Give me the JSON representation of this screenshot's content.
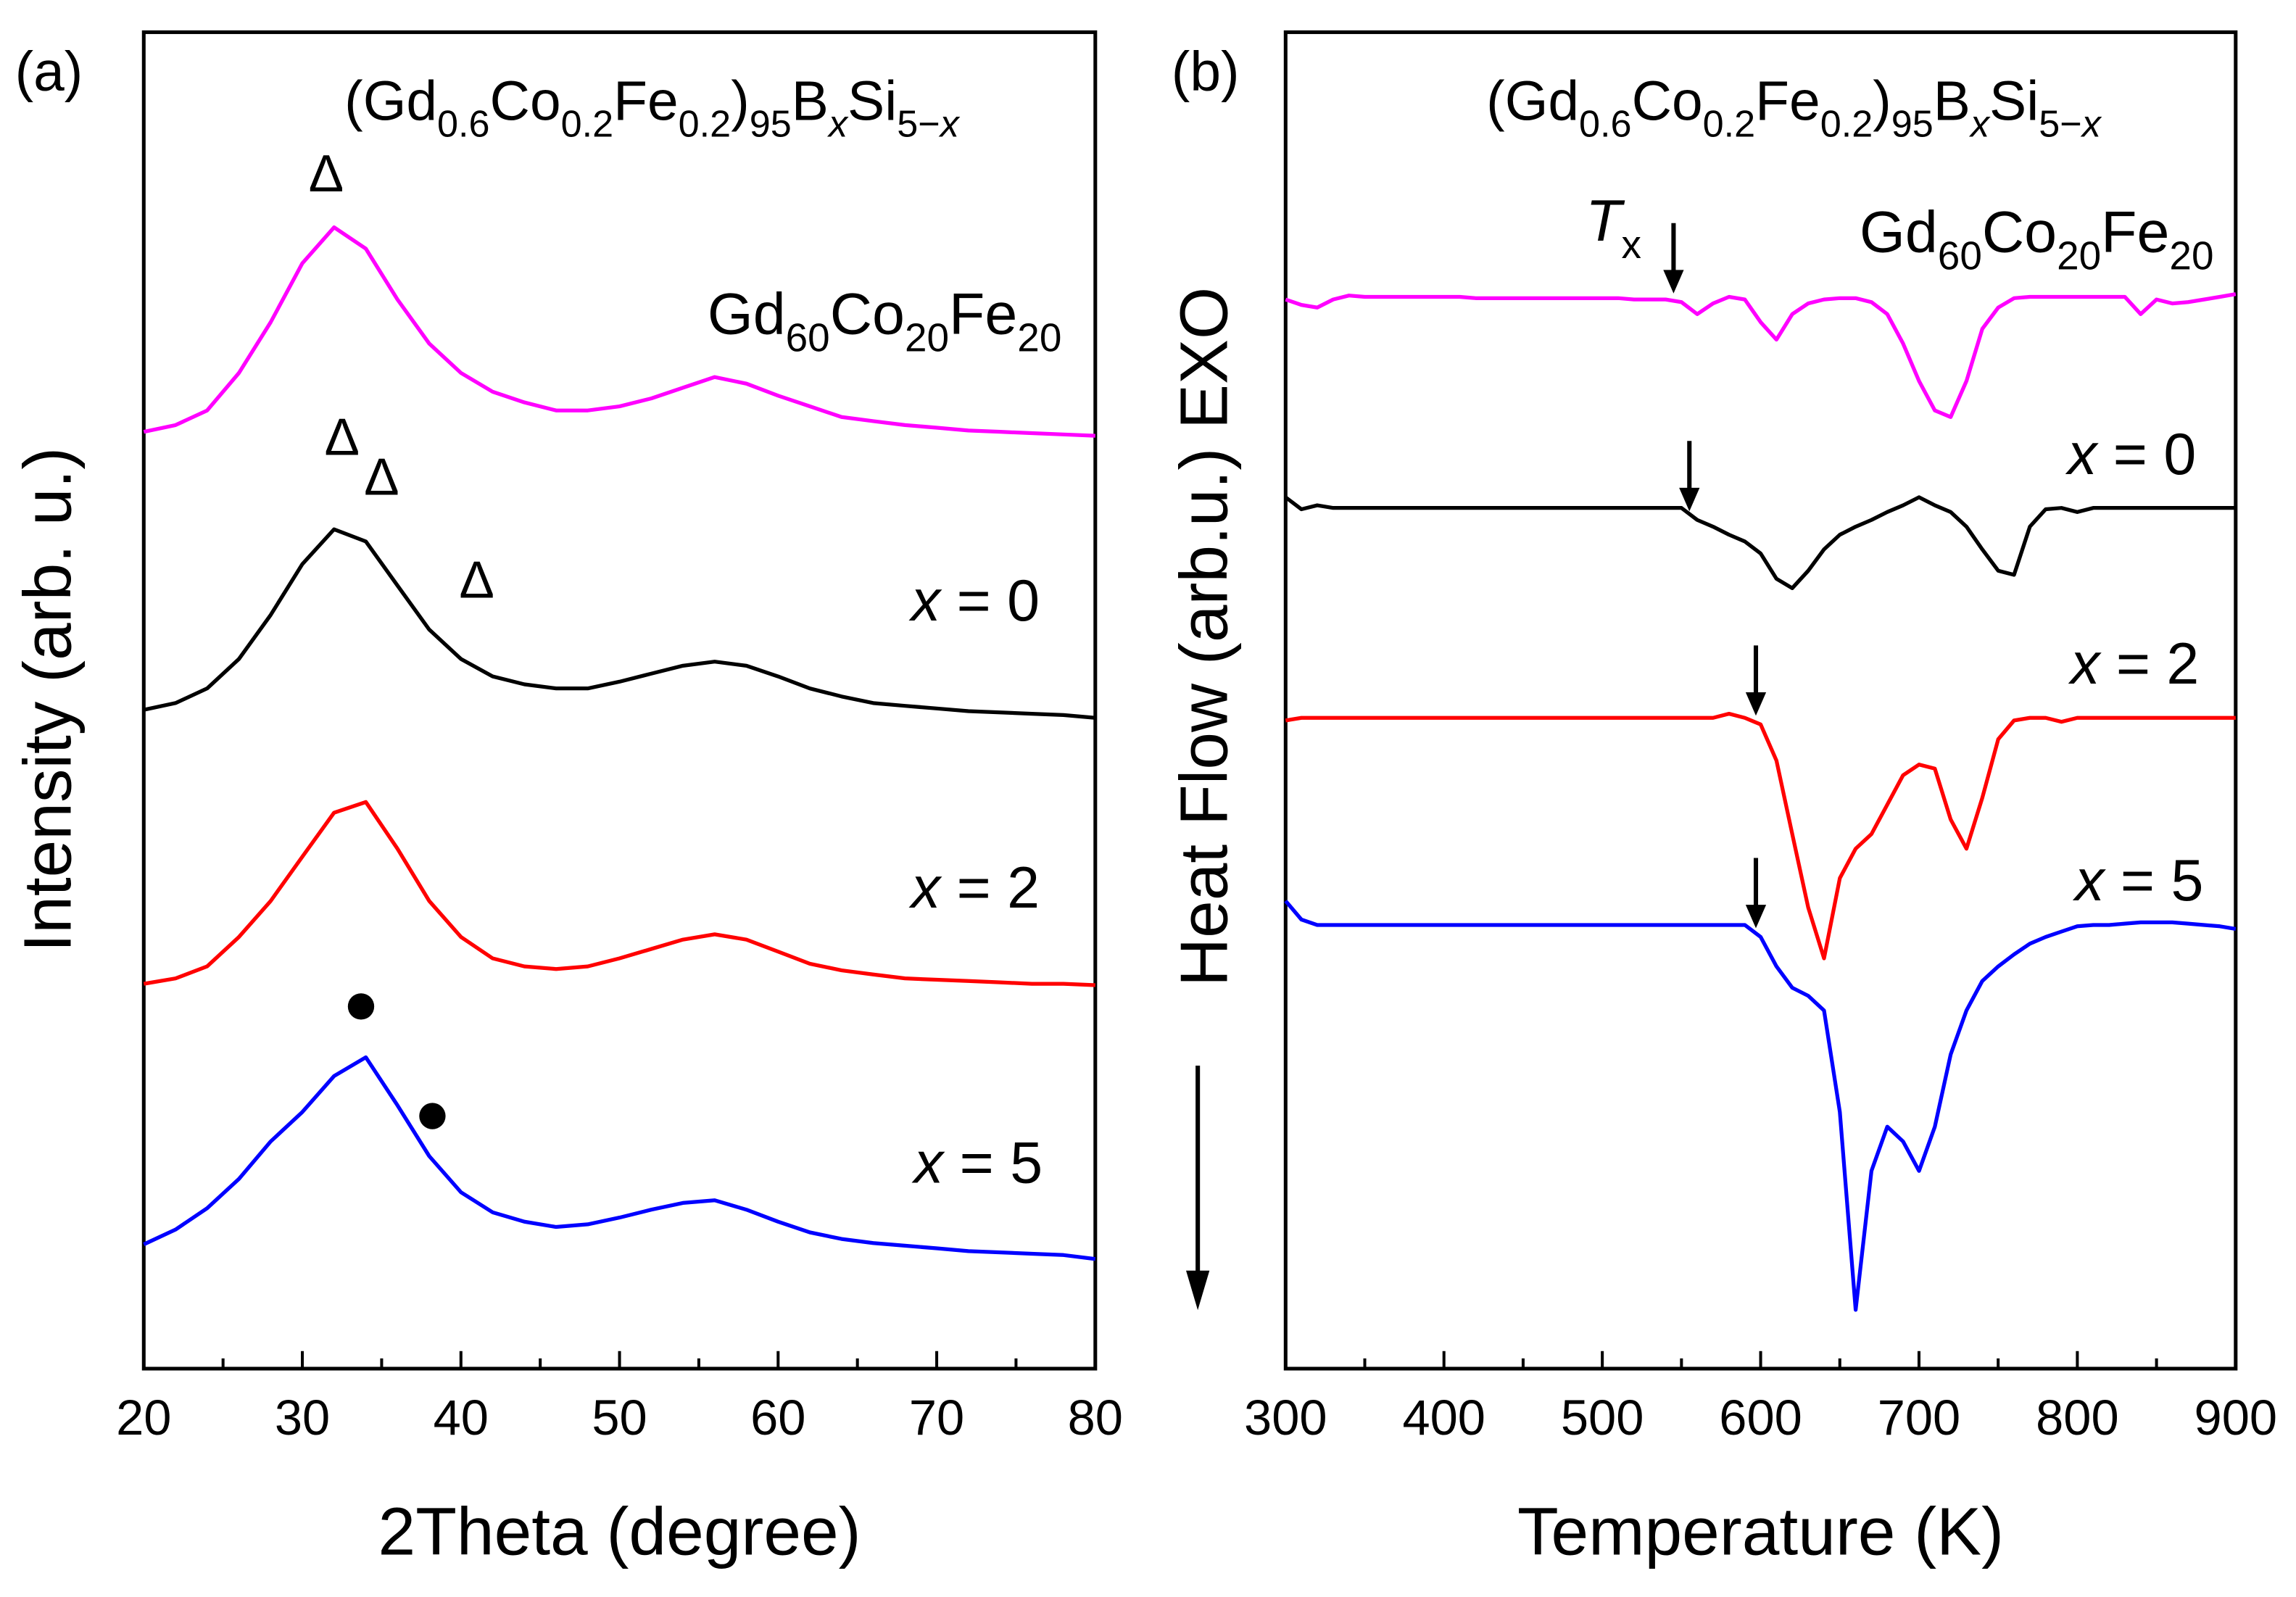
{
  "chart_data": [
    {
      "type": "line",
      "panel_label": "(a)",
      "title_parts": [
        {
          "t": "(Gd"
        },
        {
          "t": "0.6",
          "sub": true
        },
        {
          "t": "Co"
        },
        {
          "t": "0.2",
          "sub": true
        },
        {
          "t": "Fe"
        },
        {
          "t": "0.2",
          "sub": true
        },
        {
          "t": ")"
        },
        {
          "t": "95",
          "sub": true
        },
        {
          "t": "B"
        },
        {
          "t": "x",
          "sub": true,
          "italic": true
        },
        {
          "t": "Si"
        },
        {
          "t": "5−",
          "sub": true
        },
        {
          "t": "x",
          "sub": true,
          "italic": true
        }
      ],
      "xlabel": "2Theta (degree)",
      "ylabel": "Intensity (arb. u.)",
      "x": [
        20,
        22,
        24,
        26,
        28,
        30,
        32,
        34,
        36,
        38,
        40,
        42,
        44,
        46,
        48,
        50,
        52,
        54,
        56,
        58,
        60,
        62,
        64,
        66,
        68,
        70,
        72,
        74,
        76,
        78,
        80
      ],
      "xlim": [
        20,
        80
      ],
      "xticks": [
        20,
        30,
        40,
        50,
        60,
        70,
        80
      ],
      "ylim": [
        0,
        100
      ],
      "series": [
        {
          "name": [
            {
              "t": "Gd"
            },
            {
              "t": "60",
              "sub": true
            },
            {
              "t": "Co"
            },
            {
              "t": "20",
              "sub": true
            },
            {
              "t": "Fe"
            },
            {
              "t": "20",
              "sub": true
            }
          ],
          "color": "#ff00ff",
          "values": [
            70.1,
            70.6,
            71.7,
            74.5,
            78.3,
            82.7,
            85.4,
            83.8,
            80.0,
            76.7,
            74.5,
            73.1,
            72.3,
            71.7,
            71.7,
            72.0,
            72.6,
            73.4,
            74.2,
            73.7,
            72.8,
            72.0,
            71.2,
            70.9,
            70.6,
            70.4,
            70.2,
            70.1,
            70.0,
            69.9,
            69.8
          ]
        },
        {
          "name": [
            {
              "t": "x",
              "italic": true
            },
            {
              "t": " = 0"
            }
          ],
          "color": "#000000",
          "values": [
            49.3,
            49.8,
            50.9,
            53.1,
            56.4,
            60.2,
            62.8,
            61.9,
            58.6,
            55.3,
            53.1,
            51.8,
            51.2,
            50.9,
            50.9,
            51.4,
            52.0,
            52.6,
            52.9,
            52.6,
            51.8,
            50.9,
            50.3,
            49.8,
            49.6,
            49.4,
            49.2,
            49.1,
            49.0,
            48.9,
            48.7
          ]
        },
        {
          "name": [
            {
              "t": "x",
              "italic": true
            },
            {
              "t": " = 2"
            }
          ],
          "color": "#ff0000",
          "values": [
            28.8,
            29.2,
            30.1,
            32.3,
            35.0,
            38.3,
            41.6,
            42.4,
            38.9,
            35.0,
            32.3,
            30.7,
            30.1,
            29.9,
            30.1,
            30.7,
            31.4,
            32.1,
            32.5,
            32.1,
            31.2,
            30.3,
            29.8,
            29.5,
            29.2,
            29.1,
            29.0,
            28.9,
            28.8,
            28.8,
            28.7
          ]
        },
        {
          "name": [
            {
              "t": "x",
              "italic": true
            },
            {
              "t": " = 5"
            }
          ],
          "color": "#0000ff",
          "values": [
            9.3,
            10.4,
            12.0,
            14.2,
            17.0,
            19.2,
            21.9,
            23.3,
            19.7,
            15.9,
            13.2,
            11.7,
            11.0,
            10.6,
            10.8,
            11.3,
            11.9,
            12.4,
            12.6,
            11.9,
            11.0,
            10.2,
            9.7,
            9.4,
            9.2,
            9.0,
            8.8,
            8.7,
            8.6,
            8.5,
            8.2
          ]
        }
      ],
      "markers": [
        {
          "label": "Δ",
          "x": 31.5,
          "y": 89.5
        },
        {
          "label": "Δ",
          "x": 32.5,
          "y": 69.8
        },
        {
          "label": "Δ",
          "x": 35,
          "y": 66.8
        },
        {
          "label": "Δ",
          "x": 41,
          "y": 59.1
        }
      ],
      "dots": [
        {
          "x": 33.7,
          "y": 27.1
        },
        {
          "x": 38.2,
          "y": 18.9
        }
      ]
    },
    {
      "type": "line",
      "panel_label": "(b)",
      "title_parts": [
        {
          "t": "(Gd"
        },
        {
          "t": "0.6",
          "sub": true
        },
        {
          "t": "Co"
        },
        {
          "t": "0.2",
          "sub": true
        },
        {
          "t": "Fe"
        },
        {
          "t": "0.2",
          "sub": true
        },
        {
          "t": ")"
        },
        {
          "t": "95",
          "sub": true
        },
        {
          "t": "B"
        },
        {
          "t": "x",
          "sub": true,
          "italic": true
        },
        {
          "t": "Si"
        },
        {
          "t": "5−",
          "sub": true
        },
        {
          "t": "x",
          "sub": true,
          "italic": true
        }
      ],
      "xlabel": "Temperature (K)",
      "ylabel": "Heat Flow (arb.u.) EXO",
      "x": [
        300,
        310,
        320,
        330,
        340,
        350,
        360,
        370,
        380,
        390,
        400,
        410,
        420,
        430,
        440,
        450,
        460,
        470,
        480,
        490,
        500,
        510,
        520,
        530,
        540,
        550,
        560,
        570,
        580,
        590,
        600,
        610,
        620,
        630,
        640,
        650,
        660,
        670,
        680,
        690,
        700,
        710,
        720,
        730,
        740,
        750,
        760,
        770,
        780,
        790,
        800,
        810,
        820,
        830,
        840,
        850,
        860,
        870,
        880,
        890,
        900
      ],
      "xlim": [
        300,
        900
      ],
      "xticks": [
        300,
        400,
        500,
        600,
        700,
        800,
        900
      ],
      "ylim": [
        0,
        100
      ],
      "tx_label": [
        {
          "t": "T",
          "italic": true
        },
        {
          "t": "x",
          "sub": true
        }
      ],
      "series": [
        {
          "name": [
            {
              "t": "Gd"
            },
            {
              "t": "60",
              "sub": true
            },
            {
              "t": "Co"
            },
            {
              "t": "20",
              "sub": true
            },
            {
              "t": "Fe"
            },
            {
              "t": "20",
              "sub": true
            }
          ],
          "color": "#ff00ff",
          "tx": 545,
          "values": [
            80.0,
            79.6,
            79.4,
            80.0,
            80.3,
            80.2,
            80.2,
            80.2,
            80.2,
            80.2,
            80.2,
            80.2,
            80.1,
            80.1,
            80.1,
            80.1,
            80.1,
            80.1,
            80.1,
            80.1,
            80.1,
            80.1,
            80.0,
            80.0,
            80.0,
            79.8,
            78.9,
            79.7,
            80.2,
            80.0,
            78.3,
            77.0,
            78.9,
            79.7,
            80.0,
            80.1,
            80.1,
            79.8,
            78.9,
            76.7,
            73.9,
            71.7,
            71.2,
            73.9,
            77.8,
            79.4,
            80.1,
            80.2,
            80.2,
            80.2,
            80.2,
            80.2,
            80.2,
            80.2,
            78.9,
            80.0,
            79.7,
            79.8,
            80.0,
            80.2,
            80.4
          ]
        },
        {
          "name": [
            {
              "t": "x",
              "italic": true
            },
            {
              "t": " = 0"
            }
          ],
          "color": "#000000",
          "tx": 555,
          "values": [
            65.2,
            64.3,
            64.6,
            64.4,
            64.4,
            64.4,
            64.4,
            64.4,
            64.4,
            64.4,
            64.4,
            64.4,
            64.4,
            64.4,
            64.4,
            64.4,
            64.4,
            64.4,
            64.4,
            64.4,
            64.4,
            64.4,
            64.4,
            64.4,
            64.4,
            64.4,
            63.5,
            63.0,
            62.4,
            61.9,
            61.0,
            59.1,
            58.4,
            59.7,
            61.3,
            62.4,
            63.0,
            63.5,
            64.1,
            64.6,
            65.2,
            64.6,
            64.1,
            63.0,
            61.3,
            59.7,
            59.4,
            63.0,
            64.3,
            64.4,
            64.1,
            64.4,
            64.4,
            64.4,
            64.4,
            64.4,
            64.4,
            64.4,
            64.4,
            64.4,
            64.4
          ]
        },
        {
          "name": [
            {
              "t": "x",
              "italic": true
            },
            {
              "t": " = 2"
            }
          ],
          "color": "#ff0000",
          "tx": 597,
          "values": [
            48.5,
            48.7,
            48.7,
            48.7,
            48.7,
            48.7,
            48.7,
            48.7,
            48.7,
            48.7,
            48.7,
            48.7,
            48.7,
            48.7,
            48.7,
            48.7,
            48.7,
            48.7,
            48.7,
            48.7,
            48.7,
            48.7,
            48.7,
            48.7,
            48.7,
            48.7,
            48.7,
            48.7,
            49.0,
            48.7,
            48.2,
            45.5,
            40.0,
            34.5,
            30.7,
            36.7,
            38.9,
            40.0,
            42.2,
            44.4,
            45.2,
            44.9,
            41.1,
            38.9,
            42.7,
            47.1,
            48.5,
            48.7,
            48.7,
            48.4,
            48.7,
            48.7,
            48.7,
            48.7,
            48.7,
            48.7,
            48.7,
            48.7,
            48.7,
            48.7,
            48.7
          ]
        },
        {
          "name": [
            {
              "t": "x",
              "italic": true
            },
            {
              "t": " = 5"
            }
          ],
          "color": "#0000ff",
          "tx": 597,
          "values": [
            35.0,
            33.6,
            33.2,
            33.2,
            33.2,
            33.2,
            33.2,
            33.2,
            33.2,
            33.2,
            33.2,
            33.2,
            33.2,
            33.2,
            33.2,
            33.2,
            33.2,
            33.2,
            33.2,
            33.2,
            33.2,
            33.2,
            33.2,
            33.2,
            33.2,
            33.2,
            33.2,
            33.2,
            33.2,
            33.2,
            32.3,
            30.1,
            28.5,
            27.9,
            26.8,
            19.2,
            4.4,
            14.8,
            18.1,
            17.0,
            14.8,
            18.1,
            23.5,
            26.8,
            29.0,
            30.1,
            31.0,
            31.8,
            32.3,
            32.7,
            33.1,
            33.2,
            33.2,
            33.3,
            33.4,
            33.4,
            33.4,
            33.3,
            33.2,
            33.1,
            32.9
          ]
        }
      ]
    }
  ]
}
